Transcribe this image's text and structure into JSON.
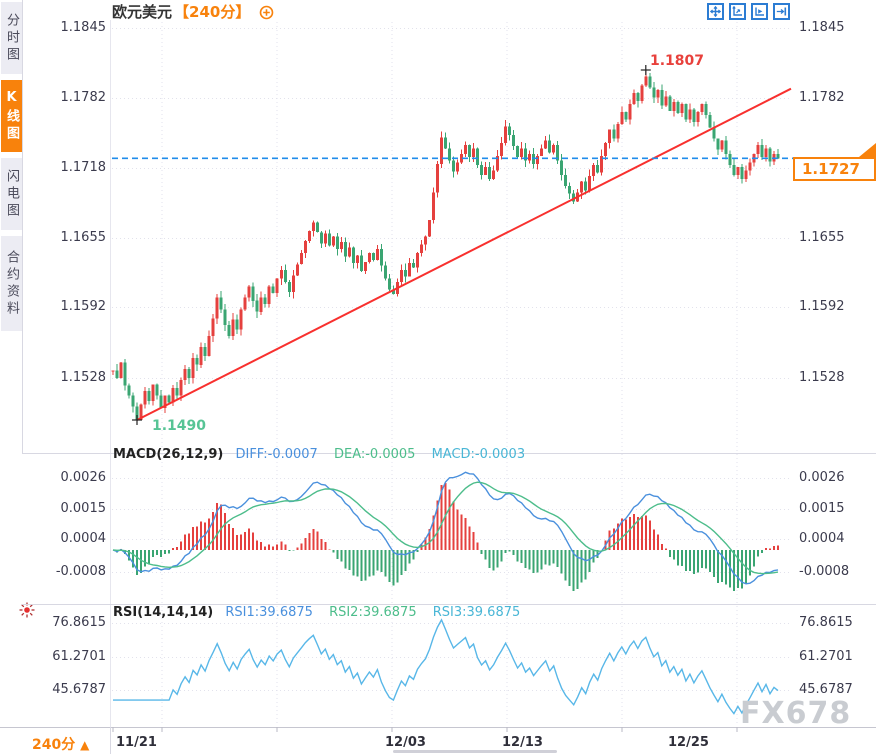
{
  "window": {
    "app": "FX678 行情图表",
    "watermark": "FX678"
  },
  "colors": {
    "accent_orange": "#f8820c",
    "toolbar_blue": "#2b7cd3",
    "candle_up": "#e5403e",
    "candle_down": "#3aa572",
    "trend_line": "#f8302e",
    "current_price_line": "#1f8ceb",
    "diff_line": "#4a90dd",
    "dea_line": "#4dbd8b",
    "macd_cyan": "#49b6d6",
    "rsi_line": "#58b7e8",
    "high_label": "#e8413c",
    "low_label": "#57c495",
    "axis_text": "#3b3b4d",
    "grid": "#e2e2ec"
  },
  "sidebar": {
    "tabs": [
      {
        "label": "分时图",
        "active": false
      },
      {
        "label": "K线图",
        "active": true
      },
      {
        "label": "闪电图",
        "active": false
      },
      {
        "label": "合约资料",
        "active": false
      }
    ]
  },
  "title": {
    "instrument": "欧元美元",
    "period": "【240分】"
  },
  "toolbar": {
    "buttons": [
      "pan",
      "reset-axes",
      "auto-scale",
      "go-to-latest"
    ]
  },
  "price_tag": {
    "value": "1.1727"
  },
  "annotations": {
    "high_label": "1.1807",
    "low_label": "1.1490"
  },
  "bottom_bar": {
    "period": "240分",
    "arrow": "▲"
  },
  "watermark_text": "FX678",
  "chart_data": {
    "type": "candlestick",
    "instrument": "欧元美元 (EUR/USD)",
    "interval": "240分",
    "x_dates": [
      "11/21",
      "12/03",
      "12/13",
      "12/25"
    ],
    "main": {
      "y_tick_labels": [
        "1.1845",
        "1.1782",
        "1.1718",
        "1.1655",
        "1.1592",
        "1.1528"
      ],
      "high": 1.1807,
      "low": 1.149,
      "last": 1.1727,
      "trendline": {
        "from_price": 1.149,
        "to_price": 1.179
      },
      "current_price_dashed_level": 1.1727,
      "closes": [
        1.1535,
        1.1528,
        1.1542,
        1.1521,
        1.1512,
        1.1502,
        1.149,
        1.1504,
        1.1516,
        1.1507,
        1.1522,
        1.1512,
        1.1501,
        1.1512,
        1.1506,
        1.1519,
        1.1512,
        1.1526,
        1.1536,
        1.1528,
        1.1546,
        1.154,
        1.1556,
        1.1548,
        1.1566,
        1.1582,
        1.1601,
        1.159,
        1.1576,
        1.1566,
        1.1581,
        1.1572,
        1.159,
        1.1601,
        1.1611,
        1.1598,
        1.1588,
        1.1601,
        1.1595,
        1.1611,
        1.1605,
        1.1618,
        1.1626,
        1.1615,
        1.1606,
        1.1621,
        1.1631,
        1.1641,
        1.1652,
        1.1661,
        1.1669,
        1.166,
        1.165,
        1.1659,
        1.1648,
        1.1656,
        1.1645,
        1.1651,
        1.1638,
        1.1646,
        1.1632,
        1.1639,
        1.1625,
        1.1633,
        1.1641,
        1.1635,
        1.1645,
        1.163,
        1.1618,
        1.1608,
        1.1604,
        1.1615,
        1.1626,
        1.162,
        1.1632,
        1.1628,
        1.1641,
        1.1649,
        1.1656,
        1.1671,
        1.1696,
        1.1722,
        1.1746,
        1.1736,
        1.1725,
        1.1715,
        1.1723,
        1.1731,
        1.1739,
        1.1728,
        1.1736,
        1.1721,
        1.1712,
        1.1719,
        1.1708,
        1.1716,
        1.1729,
        1.1741,
        1.1756,
        1.1748,
        1.1738,
        1.1728,
        1.1736,
        1.1725,
        1.1731,
        1.1722,
        1.1729,
        1.1736,
        1.1743,
        1.1732,
        1.1739,
        1.1725,
        1.1712,
        1.1702,
        1.1695,
        1.1688,
        1.1696,
        1.1706,
        1.1698,
        1.1711,
        1.1721,
        1.1714,
        1.1729,
        1.1741,
        1.1753,
        1.1745,
        1.1758,
        1.1769,
        1.1762,
        1.1776,
        1.1786,
        1.1779,
        1.1793,
        1.1801,
        1.1791,
        1.1782,
        1.1789,
        1.1775,
        1.1783,
        1.177,
        1.1778,
        1.1768,
        1.1776,
        1.1762,
        1.1771,
        1.176,
        1.1769,
        1.1776,
        1.1766,
        1.1755,
        1.1745,
        1.1735,
        1.1743,
        1.1731,
        1.1721,
        1.1712,
        1.1719,
        1.1708,
        1.1716,
        1.1723,
        1.1731,
        1.1739,
        1.1728,
        1.1736,
        1.1724,
        1.1731,
        1.1727
      ]
    },
    "macd": {
      "title": "MACD(26,12,9)",
      "diff_label": "DIFF:-0.0007",
      "dea_label": "DEA:-0.0005",
      "macd_label": "MACD:-0.0003",
      "params": {
        "slow": 26,
        "fast": 12,
        "signal": 9
      },
      "y_tick_labels": [
        "0.0026",
        "0.0015",
        "0.0004",
        "-0.0008"
      ],
      "derived_from": "closes"
    },
    "rsi": {
      "title": "RSI(14,14,14)",
      "rsi1_label": "RSI1:39.6875",
      "rsi2_label": "RSI2:39.6875",
      "rsi3_label": "RSI3:39.6875",
      "params": {
        "period": 14
      },
      "y_tick_labels": [
        "76.8615",
        "61.2701",
        "45.6787"
      ],
      "derived_from": "closes"
    }
  }
}
